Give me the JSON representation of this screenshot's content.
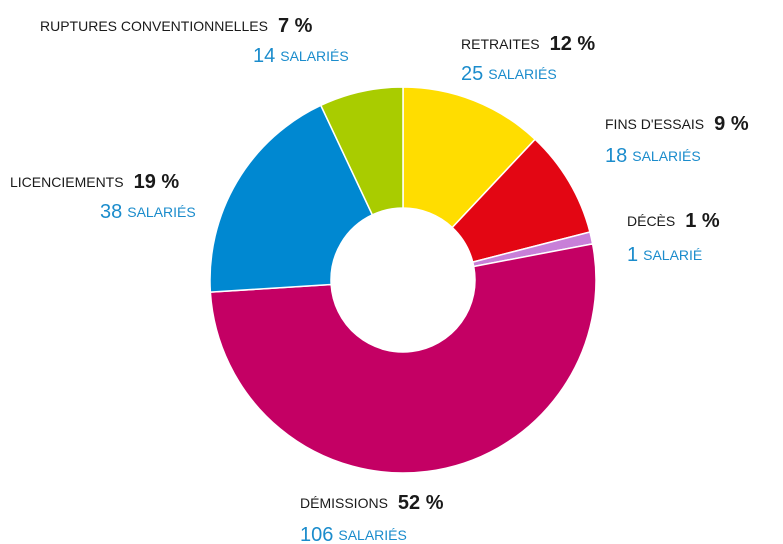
{
  "chart_data": {
    "type": "donut",
    "categories": [
      "RETRAITES",
      "FINS D'ESSAIS",
      "DÉCÈS",
      "DÉMISSIONS",
      "LICENCIEMENTS",
      "RUPTURES CONVENTIONNELLES"
    ],
    "values": [
      12,
      9,
      1,
      52,
      19,
      7
    ],
    "value_labels": [
      "12 %",
      "9 %",
      "1 %",
      "52 %",
      "19 %",
      "7 %"
    ],
    "counts": [
      25,
      18,
      1,
      106,
      38,
      14
    ],
    "count_units": [
      "SALARIÉS",
      "SALARIÉS",
      "SALARIÉ",
      "SALARIÉS",
      "SALARIÉS",
      "SALARIÉS"
    ],
    "colors": [
      "#ffdd00",
      "#e30613",
      "#c87fd8",
      "#c40064",
      "#0088d1",
      "#a9cc00"
    ]
  }
}
